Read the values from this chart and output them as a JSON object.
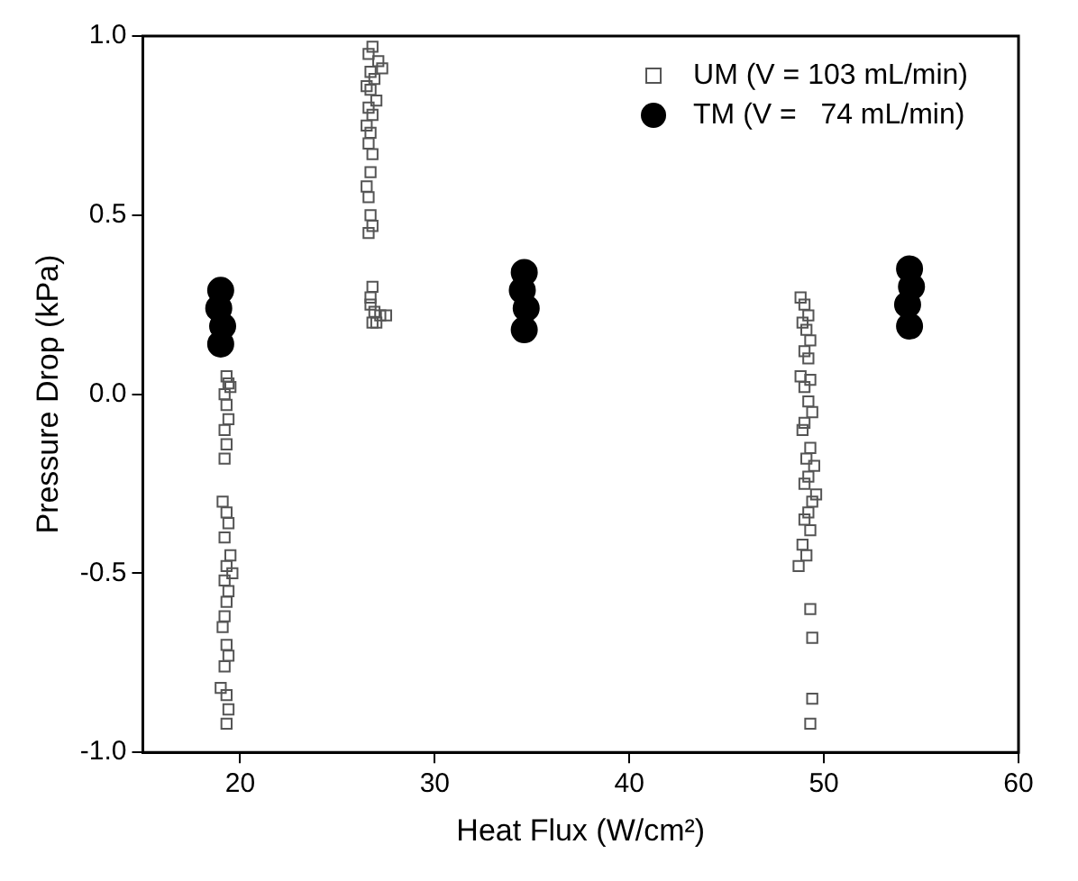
{
  "chart_data": {
    "type": "scatter",
    "xlabel": "Heat Flux (W/cm²)",
    "ylabel": "Pressure Drop (kPa)",
    "xlim": [
      15,
      60
    ],
    "ylim": [
      -1,
      1
    ],
    "xticks": [
      20,
      30,
      40,
      50,
      60
    ],
    "yticks": [
      {
        "value": -1,
        "label": "-1.0"
      },
      -0.5,
      {
        "value": 0,
        "label": "0.0"
      },
      0.5,
      {
        "value": 1,
        "label": "1.0"
      }
    ],
    "grid": false,
    "legend": "top right",
    "series": [
      {
        "name": "UM (V = 103 mL/min)",
        "color": "#555555",
        "marker": "square",
        "x": [
          19.3,
          19.4,
          19.5,
          19.2,
          19.3,
          19.4,
          19.2,
          19.3,
          19.2,
          19.1,
          19.3,
          19.4,
          19.2,
          19.5,
          19.3,
          19.6,
          19.2,
          19.4,
          19.3,
          19.2,
          19.1,
          19.3,
          19.4,
          19.2,
          19.0,
          19.3,
          19.4,
          19.3,
          26.8,
          26.6,
          27.1,
          27.3,
          26.7,
          26.9,
          26.5,
          26.7,
          27.0,
          26.6,
          26.8,
          26.5,
          26.7,
          26.6,
          26.8,
          26.7,
          26.5,
          26.6,
          26.7,
          26.8,
          26.6,
          26.8,
          26.7,
          26.7,
          26.9,
          27.2,
          26.8,
          27.5,
          27.0,
          48.8,
          49.0,
          49.2,
          48.9,
          49.1,
          49.3,
          49.0,
          49.2,
          48.8,
          49.3,
          49.0,
          49.2,
          49.4,
          49.0,
          48.9,
          49.3,
          49.1,
          49.5,
          49.2,
          49.0,
          49.6,
          49.4,
          49.2,
          49.0,
          49.3,
          48.9,
          49.1,
          48.7,
          49.3,
          49.4,
          49.4,
          49.3
        ],
        "values": [
          0.05,
          0.03,
          0.02,
          0.0,
          -0.03,
          -0.07,
          -0.1,
          -0.14,
          -0.18,
          -0.3,
          -0.33,
          -0.36,
          -0.4,
          -0.45,
          -0.48,
          -0.5,
          -0.52,
          -0.55,
          -0.58,
          -0.62,
          -0.65,
          -0.7,
          -0.73,
          -0.76,
          -0.82,
          -0.84,
          -0.88,
          -0.92,
          0.97,
          0.95,
          0.93,
          0.91,
          0.9,
          0.88,
          0.86,
          0.85,
          0.82,
          0.8,
          0.78,
          0.75,
          0.73,
          0.7,
          0.67,
          0.62,
          0.58,
          0.55,
          0.5,
          0.47,
          0.45,
          0.3,
          0.27,
          0.25,
          0.23,
          0.22,
          0.2,
          0.22,
          0.2,
          0.27,
          0.25,
          0.22,
          0.2,
          0.18,
          0.15,
          0.12,
          0.1,
          0.05,
          0.04,
          0.02,
          -0.02,
          -0.05,
          -0.08,
          -0.1,
          -0.15,
          -0.18,
          -0.2,
          -0.23,
          -0.25,
          -0.28,
          -0.3,
          -0.33,
          -0.35,
          -0.38,
          -0.42,
          -0.45,
          -0.48,
          -0.6,
          -0.68,
          -0.85,
          -0.92
        ]
      },
      {
        "name": "TM (V =   74 mL/min)",
        "color": "#000000",
        "marker": "circle",
        "x": [
          19.0,
          18.9,
          19.1,
          19.0,
          34.6,
          34.5,
          34.7,
          34.6,
          54.4,
          54.5,
          54.3,
          54.4
        ],
        "values": [
          0.29,
          0.24,
          0.19,
          0.14,
          0.34,
          0.29,
          0.24,
          0.18,
          0.35,
          0.3,
          0.25,
          0.19
        ]
      }
    ]
  }
}
